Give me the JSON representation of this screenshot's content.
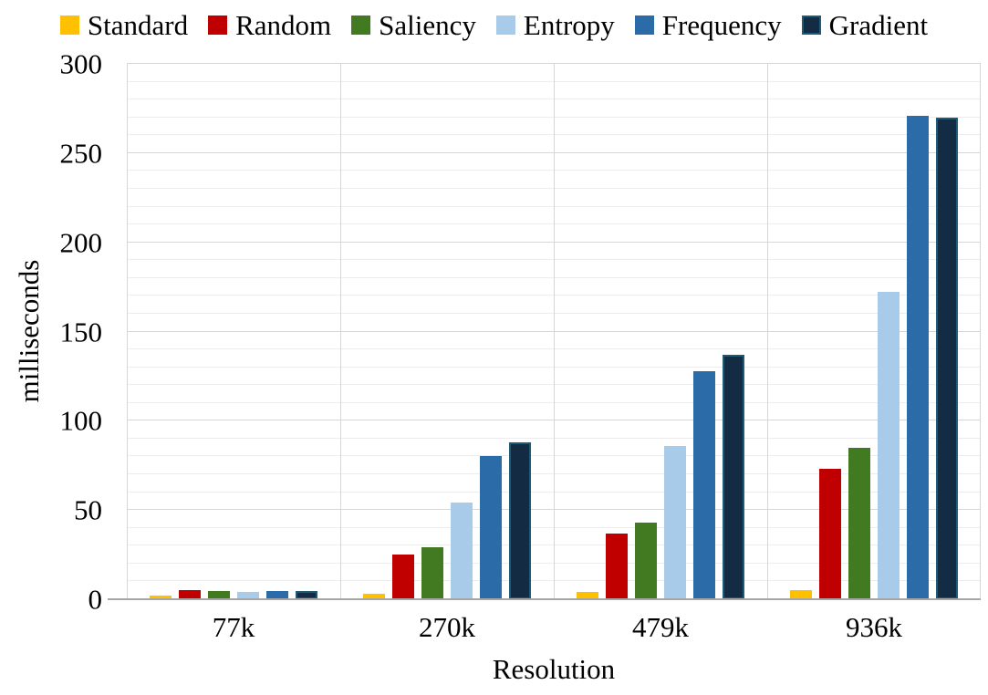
{
  "chart_data": {
    "type": "bar",
    "title": "",
    "xlabel": "Resolution",
    "ylabel": "milliseconds",
    "categories": [
      "77k",
      "270k",
      "479k",
      "936k"
    ],
    "series": [
      {
        "name": "Standard",
        "color": "#FFC000",
        "values": [
          2,
          3,
          4,
          5
        ]
      },
      {
        "name": "Random",
        "color": "#C00000",
        "values": [
          5,
          25,
          37,
          73
        ]
      },
      {
        "name": "Saliency",
        "color": "#427A21",
        "values": [
          4.5,
          29,
          43,
          85
        ]
      },
      {
        "name": "Entropy",
        "color": "#A9CBEA",
        "values": [
          4,
          54,
          86,
          172
        ]
      },
      {
        "name": "Frequency",
        "color": "#2B6BA8",
        "values": [
          4.5,
          80,
          128,
          271
        ]
      },
      {
        "name": "Gradient",
        "color": "#142B44",
        "border_color": "#1E5B77",
        "values": [
          4.5,
          88,
          137,
          270
        ]
      }
    ],
    "ylim": [
      0,
      300
    ],
    "yticks": [
      0,
      50,
      100,
      150,
      200,
      250,
      300
    ],
    "minor_grid_step": 10,
    "major_grid_step": 50,
    "grid": "on",
    "legend_position": "top",
    "colors": {
      "major_gridline": "#d6d6d6",
      "minor_gridline": "#ededed",
      "category_separator": "#d6d6d6",
      "axis_line": "#a6a6a6",
      "text": "#000000",
      "background": "#ffffff"
    }
  }
}
